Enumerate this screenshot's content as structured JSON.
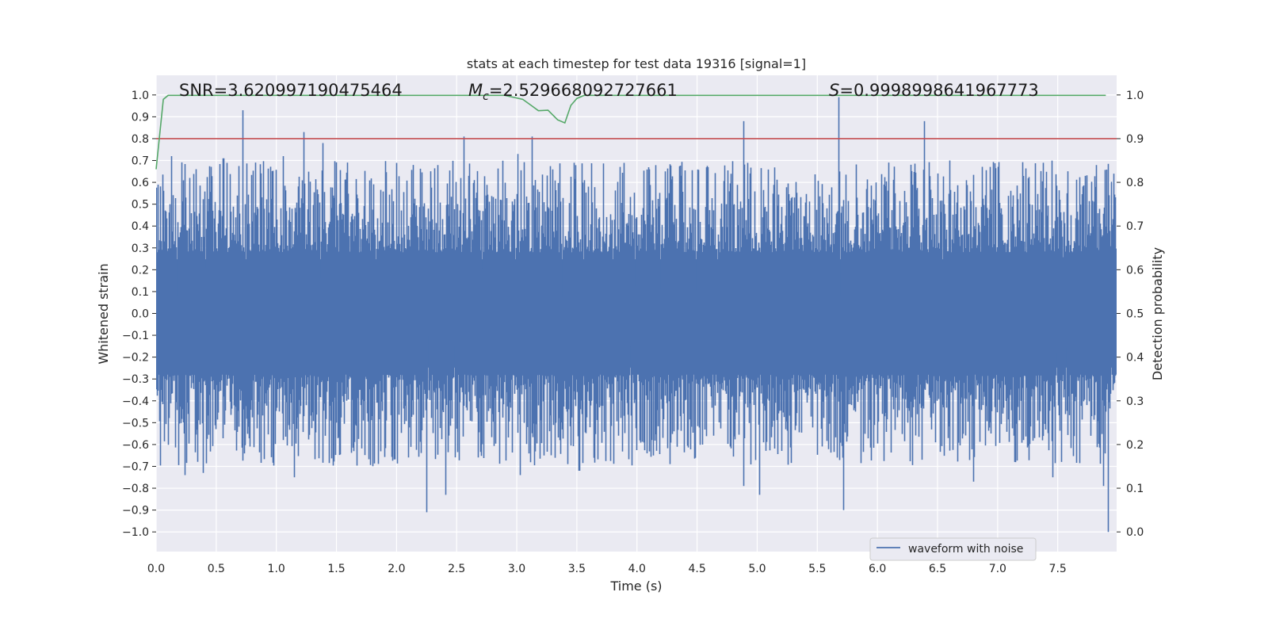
{
  "chart_data": {
    "type": "line",
    "title": "stats at each timestep for test data 19316 [signal=1]",
    "xlabel": "Time (s)",
    "ylabel": "Whitened strain",
    "y2label": "Detection probability",
    "xlim": [
      0.0,
      7.99
    ],
    "ylim": [
      -1.09,
      1.09
    ],
    "y2lim": [
      -0.045,
      1.045
    ],
    "xticks": [
      "0.0",
      "0.5",
      "1.0",
      "1.5",
      "2.0",
      "2.5",
      "3.0",
      "3.5",
      "4.0",
      "4.5",
      "5.0",
      "5.5",
      "6.0",
      "6.5",
      "7.0",
      "7.5"
    ],
    "yticks": [
      "1.0",
      "0.9",
      "0.8",
      "0.7",
      "0.6",
      "0.5",
      "0.4",
      "0.3",
      "0.2",
      "0.1",
      "0.0",
      "−0.1",
      "−0.2",
      "−0.3",
      "−0.4",
      "−0.5",
      "−0.6",
      "−0.7",
      "−0.8",
      "−0.9",
      "−1.0"
    ],
    "y2ticks": [
      "1.0",
      "0.9",
      "0.8",
      "0.7",
      "0.6",
      "0.5",
      "0.4",
      "0.3",
      "0.2",
      "0.1",
      "0.0"
    ],
    "grid": true,
    "annotations": {
      "snr": "SNR=3.620997190475464",
      "mc_symbol": "M",
      "mc_sub": "c",
      "mc_value": "=2.529668092727661",
      "s_symbol": "S",
      "s_value": "=0.9998998641967773"
    },
    "legend": {
      "position": "lower-right",
      "entries": [
        "waveform with noise"
      ]
    },
    "threshold": {
      "axis": "right",
      "value": 0.9,
      "color": "#c44e52"
    },
    "series": [
      {
        "name": "waveform with noise",
        "axis": "left",
        "color": "#4c72b0",
        "sample_rate_hz": 2048,
        "noise_band": [
          -0.4,
          0.4
        ],
        "peaks": [
          {
            "x": 0.72,
            "y": 0.93
          },
          {
            "x": 1.23,
            "y": 0.83
          },
          {
            "x": 1.39,
            "y": 0.78
          },
          {
            "x": 2.56,
            "y": 0.81
          },
          {
            "x": 3.13,
            "y": 0.81
          },
          {
            "x": 4.89,
            "y": 0.88
          },
          {
            "x": 5.68,
            "y": 0.99
          },
          {
            "x": 6.39,
            "y": 0.88
          },
          {
            "x": 0.13,
            "y": 0.72
          },
          {
            "x": 0.56,
            "y": 0.71
          },
          {
            "x": 3.01,
            "y": 0.73
          },
          {
            "x": 1.06,
            "y": 0.72
          }
        ],
        "troughs": [
          {
            "x": 2.25,
            "y": -0.91
          },
          {
            "x": 2.41,
            "y": -0.83
          },
          {
            "x": 5.02,
            "y": -0.83
          },
          {
            "x": 5.72,
            "y": -0.9
          },
          {
            "x": 7.92,
            "y": -1.0
          },
          {
            "x": 1.15,
            "y": -0.75
          },
          {
            "x": 0.24,
            "y": -0.74
          },
          {
            "x": 0.39,
            "y": -0.73
          },
          {
            "x": 3.03,
            "y": -0.74
          },
          {
            "x": 3.52,
            "y": -0.72
          },
          {
            "x": 4.89,
            "y": -0.79
          },
          {
            "x": 6.8,
            "y": -0.77
          },
          {
            "x": 7.88,
            "y": -0.79
          },
          {
            "x": 7.46,
            "y": -0.75
          }
        ]
      },
      {
        "name": "",
        "axis": "right",
        "color": "#55a868",
        "x": [
          0.0,
          0.06,
          0.1,
          0.5,
          2.7,
          2.9,
          3.05,
          3.12,
          3.18,
          3.26,
          3.34,
          3.4,
          3.45,
          3.5,
          3.56,
          4.0,
          7.9
        ],
        "values": [
          0.83,
          0.99,
          0.999,
          0.999,
          0.999,
          0.999,
          0.99,
          0.976,
          0.964,
          0.965,
          0.943,
          0.936,
          0.976,
          0.992,
          0.999,
          0.999,
          0.999
        ]
      }
    ]
  }
}
